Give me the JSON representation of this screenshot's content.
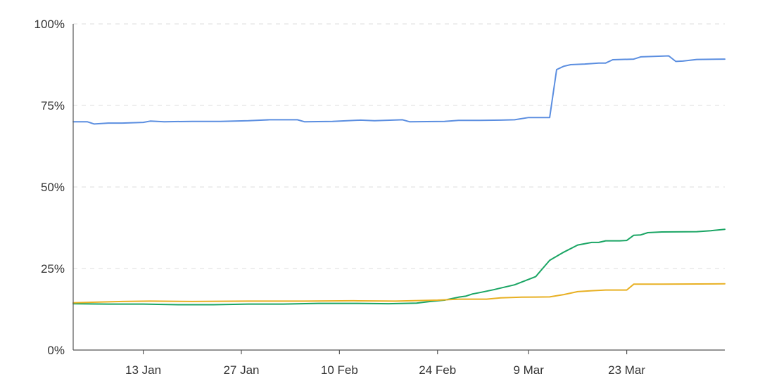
{
  "chart_data": {
    "type": "line",
    "title": "",
    "xlabel": "",
    "ylabel": "",
    "x_range": [
      "2021-01-03",
      "2021-04-06"
    ],
    "ylim": [
      0,
      100
    ],
    "y_ticks": [
      0,
      25,
      50,
      75,
      100
    ],
    "y_tick_labels": [
      "0%",
      "25%",
      "50%",
      "75%",
      "100%"
    ],
    "x_ticks": [
      "2021-01-13",
      "2021-01-27",
      "2021-02-10",
      "2021-02-24",
      "2021-03-09",
      "2021-03-23"
    ],
    "x_tick_labels": [
      "13 Jan",
      "27 Jan",
      "10 Feb",
      "24 Feb",
      "9 Mar",
      "23 Mar"
    ],
    "grid": "horizontal dashed",
    "legend": "none",
    "series": [
      {
        "color": "#5b8ee0",
        "points": [
          [
            "2021-01-03",
            70.0
          ],
          [
            "2021-01-05",
            70.0
          ],
          [
            "2021-01-06",
            69.3
          ],
          [
            "2021-01-08",
            69.6
          ],
          [
            "2021-01-10",
            69.6
          ],
          [
            "2021-01-13",
            69.8
          ],
          [
            "2021-01-14",
            70.2
          ],
          [
            "2021-01-16",
            70.0
          ],
          [
            "2021-01-20",
            70.1
          ],
          [
            "2021-01-24",
            70.1
          ],
          [
            "2021-01-28",
            70.3
          ],
          [
            "2021-01-31",
            70.6
          ],
          [
            "2021-02-04",
            70.6
          ],
          [
            "2021-02-05",
            70.0
          ],
          [
            "2021-02-09",
            70.1
          ],
          [
            "2021-02-13",
            70.5
          ],
          [
            "2021-02-15",
            70.3
          ],
          [
            "2021-02-19",
            70.6
          ],
          [
            "2021-02-20",
            70.0
          ],
          [
            "2021-02-25",
            70.1
          ],
          [
            "2021-02-27",
            70.4
          ],
          [
            "2021-03-02",
            70.4
          ],
          [
            "2021-03-05",
            70.5
          ],
          [
            "2021-03-07",
            70.6
          ],
          [
            "2021-03-09",
            71.3
          ],
          [
            "2021-03-12",
            71.3
          ],
          [
            "2021-03-13",
            86.0
          ],
          [
            "2021-03-14",
            87.0
          ],
          [
            "2021-03-15",
            87.5
          ],
          [
            "2021-03-17",
            87.7
          ],
          [
            "2021-03-19",
            88.0
          ],
          [
            "2021-03-20",
            88.0
          ],
          [
            "2021-03-21",
            89.0
          ],
          [
            "2021-03-24",
            89.2
          ],
          [
            "2021-03-25",
            89.9
          ],
          [
            "2021-03-29",
            90.2
          ],
          [
            "2021-03-30",
            88.5
          ],
          [
            "2021-03-31",
            88.6
          ],
          [
            "2021-04-02",
            89.1
          ],
          [
            "2021-04-06",
            89.2
          ]
        ]
      },
      {
        "color": "#1aa564",
        "points": [
          [
            "2021-01-03",
            14.2
          ],
          [
            "2021-01-08",
            14.1
          ],
          [
            "2021-01-13",
            14.1
          ],
          [
            "2021-01-18",
            13.9
          ],
          [
            "2021-01-23",
            13.9
          ],
          [
            "2021-01-28",
            14.1
          ],
          [
            "2021-02-02",
            14.1
          ],
          [
            "2021-02-07",
            14.3
          ],
          [
            "2021-02-12",
            14.3
          ],
          [
            "2021-02-17",
            14.2
          ],
          [
            "2021-02-21",
            14.4
          ],
          [
            "2021-02-23",
            14.9
          ],
          [
            "2021-02-25",
            15.3
          ],
          [
            "2021-02-27",
            16.2
          ],
          [
            "2021-02-28",
            16.5
          ],
          [
            "2021-03-01",
            17.2
          ],
          [
            "2021-03-02",
            17.6
          ],
          [
            "2021-03-04",
            18.5
          ],
          [
            "2021-03-05",
            19.0
          ],
          [
            "2021-03-07",
            20.0
          ],
          [
            "2021-03-10",
            22.5
          ],
          [
            "2021-03-11",
            25.0
          ],
          [
            "2021-03-12",
            27.5
          ],
          [
            "2021-03-14",
            30.0
          ],
          [
            "2021-03-16",
            32.2
          ],
          [
            "2021-03-18",
            33.0
          ],
          [
            "2021-03-19",
            33.0
          ],
          [
            "2021-03-20",
            33.5
          ],
          [
            "2021-03-22",
            33.5
          ],
          [
            "2021-03-23",
            33.6
          ],
          [
            "2021-03-24",
            35.2
          ],
          [
            "2021-03-25",
            35.3
          ],
          [
            "2021-03-26",
            36.0
          ],
          [
            "2021-03-28",
            36.2
          ],
          [
            "2021-04-02",
            36.3
          ],
          [
            "2021-04-04",
            36.6
          ],
          [
            "2021-04-06",
            37.0
          ]
        ]
      },
      {
        "color": "#e8b023",
        "points": [
          [
            "2021-01-03",
            14.5
          ],
          [
            "2021-01-10",
            14.9
          ],
          [
            "2021-01-14",
            15.0
          ],
          [
            "2021-01-20",
            14.9
          ],
          [
            "2021-01-28",
            15.0
          ],
          [
            "2021-02-05",
            15.0
          ],
          [
            "2021-02-12",
            15.1
          ],
          [
            "2021-02-18",
            15.0
          ],
          [
            "2021-02-24",
            15.3
          ],
          [
            "2021-02-27",
            15.6
          ],
          [
            "2021-03-03",
            15.6
          ],
          [
            "2021-03-05",
            16.0
          ],
          [
            "2021-03-08",
            16.2
          ],
          [
            "2021-03-12",
            16.3
          ],
          [
            "2021-03-14",
            17.0
          ],
          [
            "2021-03-16",
            17.9
          ],
          [
            "2021-03-18",
            18.2
          ],
          [
            "2021-03-20",
            18.4
          ],
          [
            "2021-03-23",
            18.4
          ],
          [
            "2021-03-24",
            20.2
          ],
          [
            "2021-03-28",
            20.2
          ],
          [
            "2021-04-06",
            20.3
          ]
        ]
      }
    ]
  }
}
